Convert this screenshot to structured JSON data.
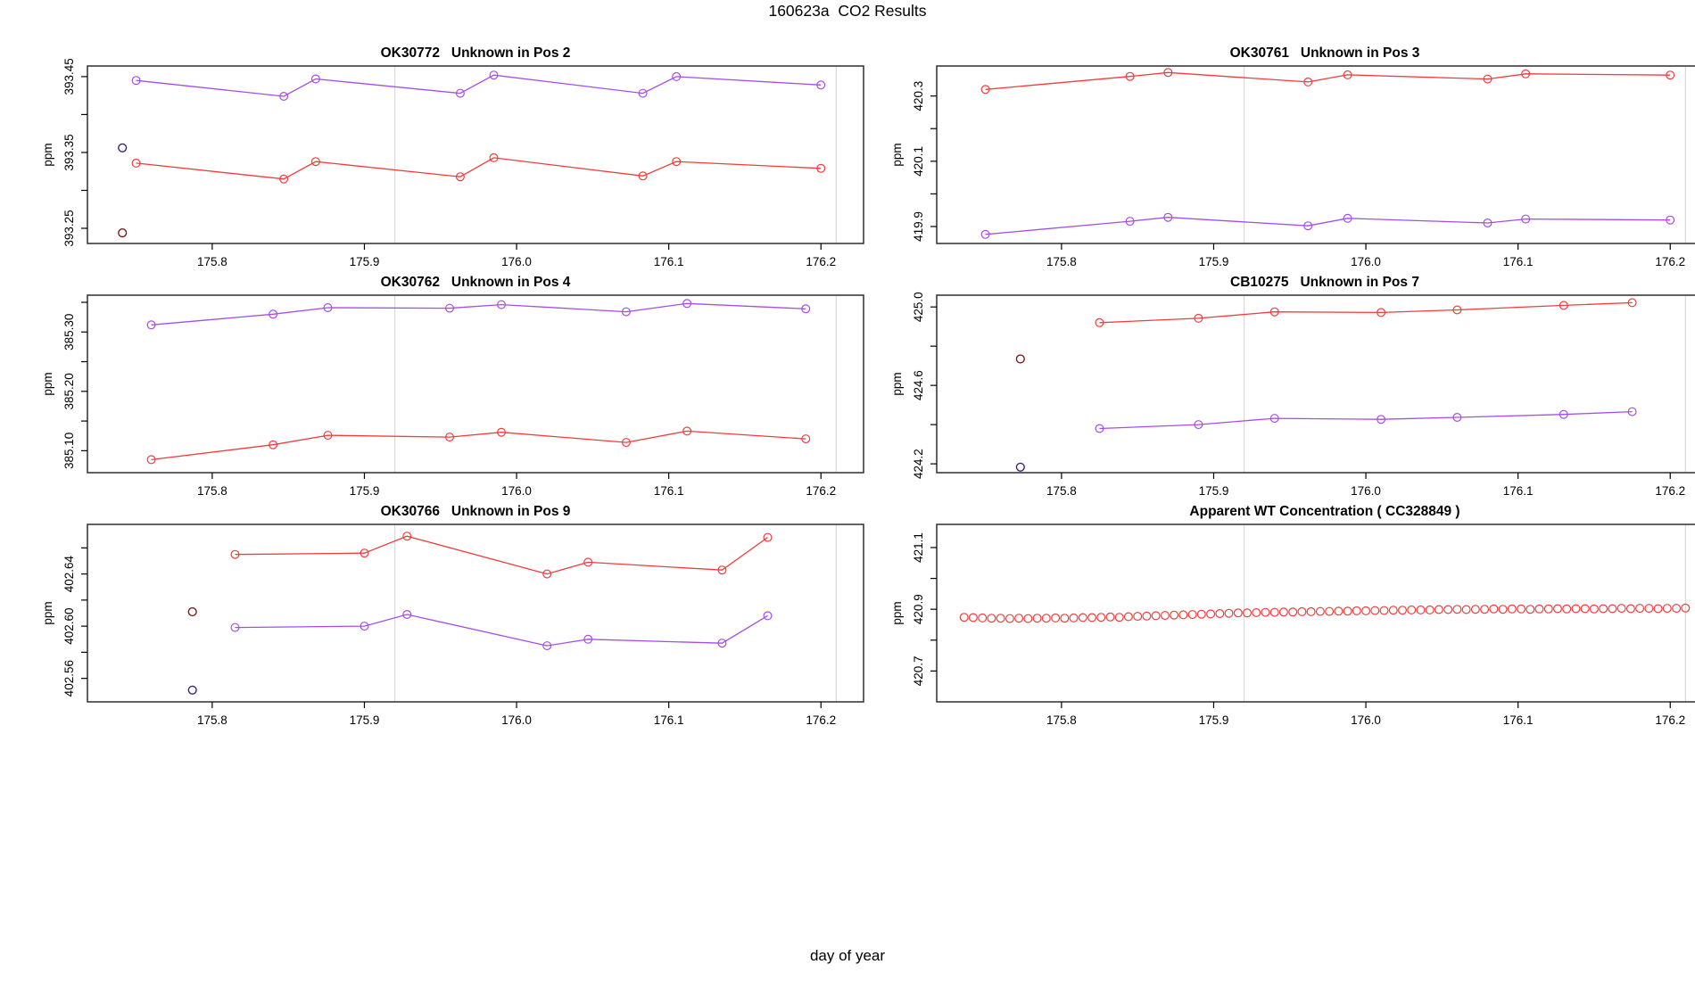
{
  "figure": {
    "title": "160623a  CO2 Results",
    "xlabel": "day of year"
  },
  "colors": {
    "series_red": "#F43B3B",
    "series_purple": "#A44DEB",
    "outlier_darkred": "#7D1B1B",
    "outlier_darkblue": "#372080",
    "ref_line": "#D9D9D9",
    "axis": "#2F2F2F"
  },
  "chart_data": [
    {
      "type": "line",
      "title": "OK30772   Unknown in Pos 2",
      "ylabel": "ppm",
      "xlim": [
        175.718,
        176.228
      ],
      "ylim": [
        393.23,
        393.464
      ],
      "x_ticks": [
        {
          "v": 175.8,
          "label": "175.8"
        },
        {
          "v": 175.9,
          "label": "175.9"
        },
        {
          "v": 176.0,
          "label": "176.0"
        },
        {
          "v": 176.1,
          "label": "176.1"
        },
        {
          "v": 176.2,
          "label": "176.2"
        }
      ],
      "y_ticks_labeled": [
        {
          "v": 393.25,
          "label": "393.25"
        },
        {
          "v": 393.35,
          "label": "393.35"
        },
        {
          "v": 393.45,
          "label": "393.45"
        }
      ],
      "y_ticks_minor": [
        393.3,
        393.4
      ],
      "ref_lines_x": [
        175.92,
        176.21
      ],
      "series": [
        {
          "name": "purple",
          "color": "#A44DEB",
          "line": true,
          "x": [
            175.75,
            175.847,
            175.868,
            175.963,
            175.985,
            176.083,
            176.105,
            176.2
          ],
          "y": [
            393.445,
            393.424,
            393.447,
            393.428,
            393.452,
            393.428,
            393.45,
            393.439
          ]
        },
        {
          "name": "red",
          "color": "#F43B3B",
          "line": true,
          "x": [
            175.75,
            175.847,
            175.868,
            175.963,
            175.985,
            176.083,
            176.105,
            176.2
          ],
          "y": [
            393.336,
            393.315,
            393.338,
            393.318,
            393.343,
            393.319,
            393.338,
            393.329
          ]
        }
      ],
      "points": [
        {
          "name": "darkblue",
          "color": "#372080",
          "x": 175.741,
          "y": 393.356
        },
        {
          "name": "darkred",
          "color": "#7D1B1B",
          "x": 175.741,
          "y": 393.244
        }
      ]
    },
    {
      "type": "line",
      "title": "OK30761   Unknown in Pos 3",
      "ylabel": "ppm",
      "xlim": [
        175.718,
        176.228
      ],
      "ylim": [
        419.848,
        420.392
      ],
      "x_ticks": [
        {
          "v": 175.8,
          "label": "175.8"
        },
        {
          "v": 175.9,
          "label": "175.9"
        },
        {
          "v": 176.0,
          "label": "176.0"
        },
        {
          "v": 176.1,
          "label": "176.1"
        },
        {
          "v": 176.2,
          "label": "176.2"
        }
      ],
      "y_ticks_labeled": [
        {
          "v": 419.9,
          "label": "419.9"
        },
        {
          "v": 420.1,
          "label": "420.1"
        },
        {
          "v": 420.3,
          "label": "420.3"
        }
      ],
      "y_ticks_minor": [
        420.0,
        420.2
      ],
      "ref_lines_x": [
        175.92,
        176.21
      ],
      "series": [
        {
          "name": "red",
          "color": "#F43B3B",
          "line": true,
          "x": [
            175.75,
            175.845,
            175.87,
            175.962,
            175.988,
            176.08,
            176.105,
            176.2
          ],
          "y": [
            420.32,
            420.36,
            420.372,
            420.343,
            420.365,
            420.352,
            420.368,
            420.364
          ]
        },
        {
          "name": "purple",
          "color": "#A44DEB",
          "line": true,
          "x": [
            175.75,
            175.845,
            175.87,
            175.962,
            175.988,
            176.08,
            176.105,
            176.2
          ],
          "y": [
            419.876,
            419.916,
            419.928,
            419.902,
            419.925,
            419.911,
            419.923,
            419.92
          ]
        }
      ],
      "points": []
    },
    {
      "type": "line",
      "title": "OK30762   Unknown in Pos 4",
      "ylabel": "ppm",
      "xlim": [
        175.718,
        176.228
      ],
      "ylim": [
        385.063,
        385.362
      ],
      "x_ticks": [
        {
          "v": 175.8,
          "label": "175.8"
        },
        {
          "v": 175.9,
          "label": "175.9"
        },
        {
          "v": 176.0,
          "label": "176.0"
        },
        {
          "v": 176.1,
          "label": "176.1"
        },
        {
          "v": 176.2,
          "label": "176.2"
        }
      ],
      "y_ticks_labeled": [
        {
          "v": 385.1,
          "label": "385.10"
        },
        {
          "v": 385.2,
          "label": "385.20"
        },
        {
          "v": 385.3,
          "label": "385.30"
        }
      ],
      "y_ticks_minor": [
        385.15,
        385.25,
        385.35
      ],
      "ref_lines_x": [
        175.92,
        176.21
      ],
      "series": [
        {
          "name": "purple",
          "color": "#A44DEB",
          "line": true,
          "x": [
            175.76,
            175.84,
            175.876,
            175.956,
            175.99,
            176.072,
            176.112,
            176.19
          ],
          "y": [
            385.312,
            385.33,
            385.341,
            385.34,
            385.346,
            385.334,
            385.348,
            385.339
          ]
        },
        {
          "name": "red",
          "color": "#F43B3B",
          "line": true,
          "x": [
            175.76,
            175.84,
            175.876,
            175.956,
            175.99,
            176.072,
            176.112,
            176.19
          ],
          "y": [
            385.085,
            385.11,
            385.126,
            385.123,
            385.131,
            385.114,
            385.133,
            385.12
          ]
        }
      ],
      "points": []
    },
    {
      "type": "line",
      "title": "CB10275   Unknown in Pos 7",
      "ylabel": "ppm",
      "xlim": [
        175.718,
        176.228
      ],
      "ylim": [
        424.155,
        425.06
      ],
      "x_ticks": [
        {
          "v": 175.8,
          "label": "175.8"
        },
        {
          "v": 175.9,
          "label": "175.9"
        },
        {
          "v": 176.0,
          "label": "176.0"
        },
        {
          "v": 176.1,
          "label": "176.1"
        },
        {
          "v": 176.2,
          "label": "176.2"
        }
      ],
      "y_ticks_labeled": [
        {
          "v": 424.2,
          "label": "424.2"
        },
        {
          "v": 424.6,
          "label": "424.6"
        },
        {
          "v": 425.0,
          "label": "425.0"
        }
      ],
      "y_ticks_minor": [
        424.4,
        424.8
      ],
      "ref_lines_x": [
        175.92,
        176.21
      ],
      "series": [
        {
          "name": "red",
          "color": "#F43B3B",
          "line": true,
          "x": [
            175.825,
            175.89,
            175.94,
            176.01,
            176.06,
            176.13,
            176.175
          ],
          "y": [
            424.92,
            424.942,
            424.975,
            424.972,
            424.985,
            425.008,
            425.022
          ]
        },
        {
          "name": "purple",
          "color": "#A44DEB",
          "line": true,
          "x": [
            175.825,
            175.89,
            175.94,
            176.01,
            176.06,
            176.13,
            176.175
          ],
          "y": [
            424.38,
            424.4,
            424.432,
            424.427,
            424.437,
            424.452,
            424.466
          ]
        }
      ],
      "points": [
        {
          "name": "darkred",
          "color": "#7D1B1B",
          "x": 175.773,
          "y": 424.735
        },
        {
          "name": "darkblue",
          "color": "#372080",
          "x": 175.773,
          "y": 424.183
        }
      ]
    },
    {
      "type": "line",
      "title": "OK30766   Unknown in Pos 9",
      "ylabel": "ppm",
      "xlim": [
        175.718,
        176.228
      ],
      "ylim": [
        402.542,
        402.678
      ],
      "x_ticks": [
        {
          "v": 175.8,
          "label": "175.8"
        },
        {
          "v": 175.9,
          "label": "175.9"
        },
        {
          "v": 176.0,
          "label": "176.0"
        },
        {
          "v": 176.1,
          "label": "176.1"
        },
        {
          "v": 176.2,
          "label": "176.2"
        }
      ],
      "y_ticks_labeled": [
        {
          "v": 402.56,
          "label": "402.56"
        },
        {
          "v": 402.6,
          "label": "402.60"
        },
        {
          "v": 402.64,
          "label": "402.64"
        }
      ],
      "y_ticks_minor": [
        402.58,
        402.62,
        402.66
      ],
      "ref_lines_x": [
        175.92,
        176.21
      ],
      "series": [
        {
          "name": "red",
          "color": "#F43B3B",
          "line": true,
          "x": [
            175.815,
            175.9,
            175.928,
            176.02,
            176.047,
            176.135,
            176.165
          ],
          "y": [
            402.655,
            402.656,
            402.669,
            402.64,
            402.649,
            402.643,
            402.668
          ]
        },
        {
          "name": "purple",
          "color": "#A44DEB",
          "line": true,
          "x": [
            175.815,
            175.9,
            175.928,
            176.02,
            176.047,
            176.135,
            176.165
          ],
          "y": [
            402.599,
            402.6,
            402.609,
            402.585,
            402.59,
            402.587,
            402.608
          ]
        }
      ],
      "points": [
        {
          "name": "darkred",
          "color": "#7D1B1B",
          "x": 175.787,
          "y": 402.611
        },
        {
          "name": "darkblue",
          "color": "#372080",
          "x": 175.787,
          "y": 402.551
        }
      ]
    },
    {
      "type": "scatter",
      "title": "Apparent WT Concentration ( CC328849 )",
      "ylabel": "ppm",
      "xlim": [
        175.718,
        176.228
      ],
      "ylim": [
        420.6,
        421.175
      ],
      "x_ticks": [
        {
          "v": 175.8,
          "label": "175.8"
        },
        {
          "v": 175.9,
          "label": "175.9"
        },
        {
          "v": 176.0,
          "label": "176.0"
        },
        {
          "v": 176.1,
          "label": "176.1"
        },
        {
          "v": 176.2,
          "label": "176.2"
        }
      ],
      "y_ticks_labeled": [
        {
          "v": 420.7,
          "label": "420.7"
        },
        {
          "v": 420.9,
          "label": "420.9"
        },
        {
          "v": 421.1,
          "label": "421.1"
        }
      ],
      "y_ticks_minor": [
        420.8,
        421.0
      ],
      "ref_lines_x": [
        175.92,
        176.21
      ],
      "series": [
        {
          "name": "red",
          "color": "#F43B3B",
          "line": false,
          "x": [
            175.736,
            175.742,
            175.748,
            175.754,
            175.76,
            175.766,
            175.772,
            175.778,
            175.784,
            175.79,
            175.796,
            175.802,
            175.808,
            175.814,
            175.82,
            175.826,
            175.832,
            175.838,
            175.844,
            175.85,
            175.856,
            175.862,
            175.868,
            175.874,
            175.88,
            175.886,
            175.892,
            175.898,
            175.904,
            175.91,
            175.916,
            175.922,
            175.928,
            175.934,
            175.94,
            175.946,
            175.952,
            175.958,
            175.964,
            175.97,
            175.976,
            175.982,
            175.988,
            175.994,
            176.0,
            176.006,
            176.012,
            176.018,
            176.024,
            176.03,
            176.036,
            176.042,
            176.048,
            176.054,
            176.06,
            176.066,
            176.072,
            176.078,
            176.084,
            176.09,
            176.096,
            176.102,
            176.108,
            176.114,
            176.12,
            176.126,
            176.132,
            176.138,
            176.144,
            176.15,
            176.156,
            176.162,
            176.168,
            176.174,
            176.18,
            176.186,
            176.192,
            176.198,
            176.204,
            176.21
          ],
          "y": [
            420.874,
            420.873,
            420.872,
            420.871,
            420.871,
            420.87,
            420.871,
            420.87,
            420.871,
            420.871,
            420.872,
            420.871,
            420.872,
            420.873,
            420.873,
            420.874,
            420.875,
            420.874,
            420.876,
            420.877,
            420.878,
            420.879,
            420.88,
            420.881,
            420.882,
            420.883,
            420.884,
            420.885,
            420.886,
            420.887,
            420.888,
            420.888,
            420.889,
            420.89,
            420.89,
            420.891,
            420.891,
            420.892,
            420.892,
            420.893,
            420.893,
            420.894,
            420.894,
            420.895,
            420.895,
            420.896,
            420.896,
            420.897,
            420.897,
            420.898,
            420.898,
            420.898,
            420.899,
            420.899,
            420.9,
            420.899,
            420.9,
            420.9,
            420.901,
            420.9,
            420.901,
            420.901,
            420.9,
            420.901,
            420.901,
            420.902,
            420.901,
            420.902,
            420.902,
            420.901,
            420.902,
            420.902,
            420.903,
            420.902,
            420.903,
            420.903,
            420.902,
            420.903,
            420.903,
            420.904
          ]
        }
      ],
      "points": []
    }
  ]
}
